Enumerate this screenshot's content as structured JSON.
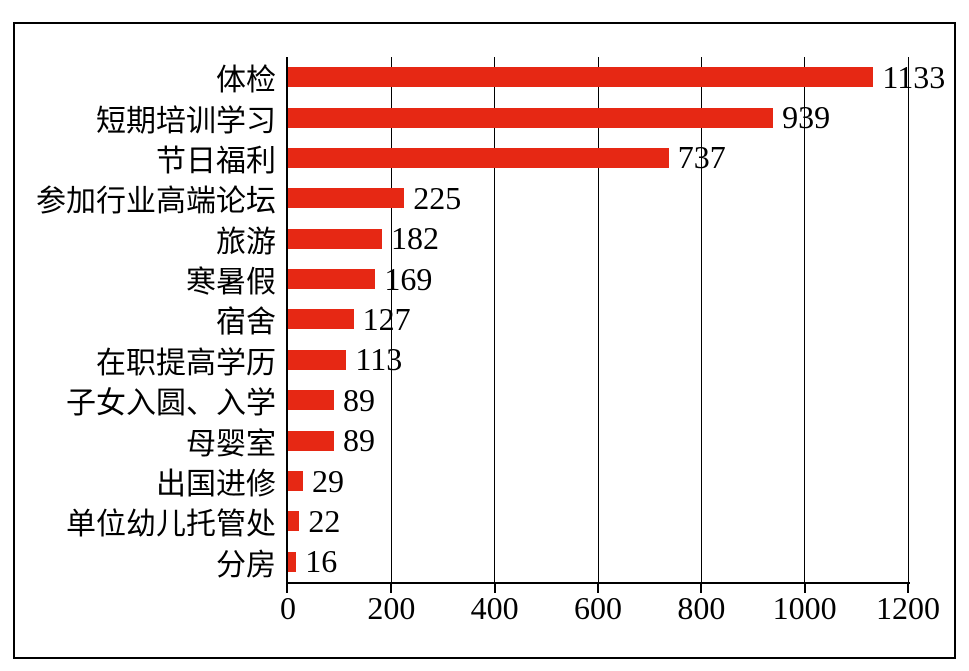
{
  "chart_data": {
    "type": "bar",
    "orientation": "horizontal",
    "title": "",
    "xlabel": "",
    "ylabel": "",
    "categories": [
      "体检",
      "短期培训学习",
      "节日福利",
      "参加行业高端论坛",
      "旅游",
      "寒暑假",
      "宿舍",
      "在职提高学历",
      "子女入圆、入学",
      "母婴室",
      "出国进修",
      "单位幼儿托管处",
      "分房"
    ],
    "values": [
      1133,
      939,
      737,
      225,
      182,
      169,
      127,
      113,
      89,
      89,
      29,
      22,
      16
    ],
    "value_labels_shown": true,
    "xlim": [
      0,
      1200
    ],
    "x_ticks": [
      0,
      200,
      400,
      600,
      800,
      1000,
      1200
    ],
    "grid": "vertical gridlines at each x tick, black",
    "legend": "none",
    "bar_color": "#e62814",
    "axis_color": "#000000",
    "text_color": "#000000",
    "frame_border_color": "#000000",
    "background_color": "#ffffff"
  }
}
